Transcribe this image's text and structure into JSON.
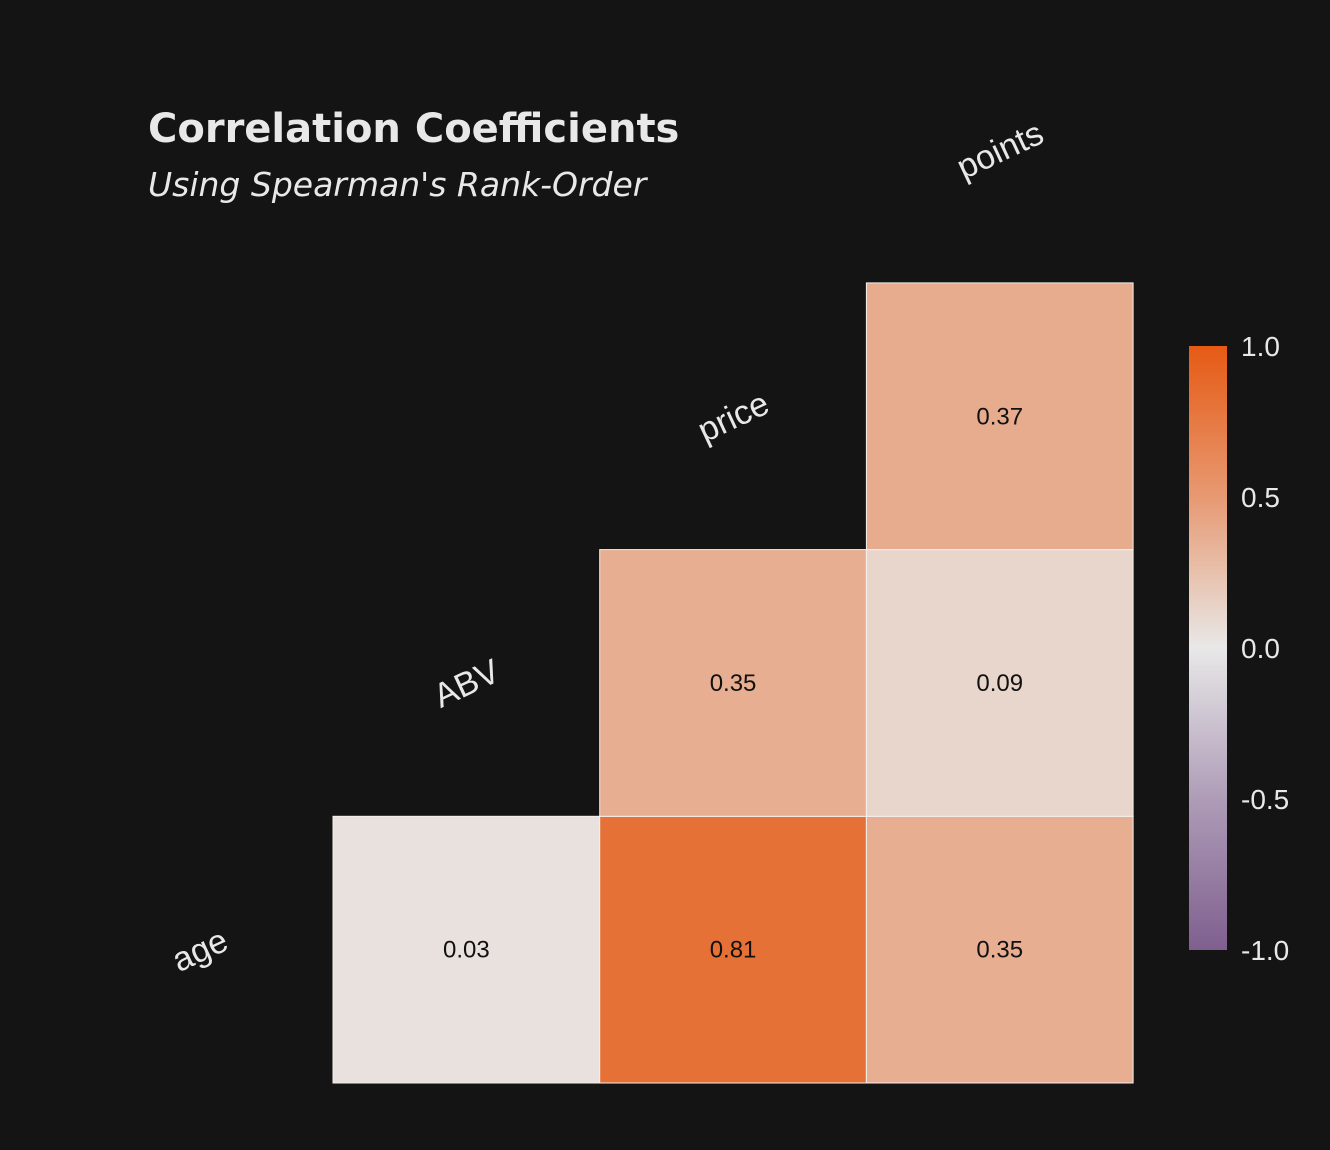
{
  "chart_data": {
    "type": "heatmap",
    "title": "Correlation Coefficients",
    "subtitle": "Using Spearman's Rank-Order",
    "variables": [
      "age",
      "ABV",
      "price",
      "points"
    ],
    "cells": [
      {
        "row": "ABV",
        "col": "age",
        "value": 0.03,
        "label": "0.03"
      },
      {
        "row": "price",
        "col": "age",
        "value": 0.81,
        "label": "0.81"
      },
      {
        "row": "price",
        "col": "ABV",
        "value": 0.35,
        "label": "0.35"
      },
      {
        "row": "points",
        "col": "age",
        "value": 0.35,
        "label": "0.35"
      },
      {
        "row": "points",
        "col": "ABV",
        "value": 0.09,
        "label": "0.09"
      },
      {
        "row": "points",
        "col": "price",
        "value": 0.37,
        "label": "0.37"
      }
    ],
    "colorbar": {
      "range": [
        -1.0,
        1.0
      ],
      "ticks": [
        1.0,
        0.5,
        0.0,
        -0.5,
        -1.0
      ],
      "tick_labels": [
        "1.0",
        "0.5",
        "0.0",
        "-0.5",
        "-1.0"
      ],
      "colors": {
        "low": "#7f5f8f",
        "mid": "#e8e8e8",
        "high": "#e65a14"
      }
    },
    "legend_position": "right"
  },
  "colors": {
    "background": "#141414",
    "text": "#e8e8e8",
    "cell_text": "#111111"
  }
}
